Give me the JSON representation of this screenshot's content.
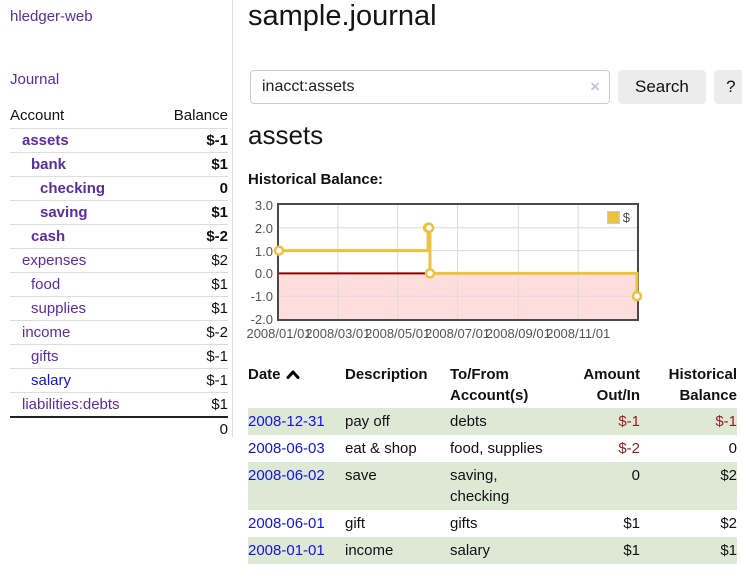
{
  "sidebar": {
    "brand": "hledger-web",
    "journal_link": "Journal",
    "headers": {
      "account": "Account",
      "balance": "Balance"
    },
    "accounts": [
      {
        "name": "assets",
        "level": 1,
        "bold": true,
        "balance": "$-1",
        "negative": true
      },
      {
        "name": "bank",
        "level": 2,
        "bold": true,
        "balance": "$1"
      },
      {
        "name": "checking",
        "level": 3,
        "bold": true,
        "balance": "0"
      },
      {
        "name": "saving",
        "level": 3,
        "bold": true,
        "balance": "$1"
      },
      {
        "name": "cash",
        "level": 2,
        "bold": true,
        "balance": "$-2",
        "negative": true
      },
      {
        "name": "expenses",
        "level": 1,
        "balance": "$2"
      },
      {
        "name": "food",
        "level": 2,
        "balance": "$1"
      },
      {
        "name": "supplies",
        "level": 2,
        "balance": "$1"
      },
      {
        "name": "income",
        "level": 1,
        "balance": "$-2",
        "faint": true
      },
      {
        "name": "gifts",
        "level": 2,
        "balance": "$-1",
        "faint": true
      },
      {
        "name": "salary",
        "level": 2,
        "balance": "$-1",
        "faint": true,
        "link_blue": true
      },
      {
        "name": "liabilities:debts",
        "level": 1,
        "balance": "$1"
      }
    ],
    "total": "0"
  },
  "main": {
    "title": "sample.journal",
    "search": {
      "value": "inacct:assets",
      "clear": "×",
      "button": "Search",
      "help": "?"
    },
    "account_heading": "assets",
    "chart_title": "Historical Balance:"
  },
  "chart_data": {
    "type": "line",
    "title": "Historical Balance",
    "xlim": [
      "2008-01-01",
      "2008-12-31"
    ],
    "ylim": [
      -2,
      3
    ],
    "x_ticks": [
      "2008/01/01",
      "2008/03/01",
      "2008/05/01",
      "2008/07/01",
      "2008/09/01",
      "2008/11/01"
    ],
    "y_ticks": [
      "3.0",
      "2.0",
      "1.0",
      "0.0",
      "-1.0",
      "-2.0"
    ],
    "series": [
      {
        "name": "$",
        "color": "#edc240",
        "steps": true,
        "points": [
          [
            "2008-01-01",
            1
          ],
          [
            "2008-06-01",
            2
          ],
          [
            "2008-06-02",
            2
          ],
          [
            "2008-06-03",
            0
          ],
          [
            "2008-12-31",
            -1
          ]
        ]
      }
    ],
    "legend": {
      "label": "$",
      "position": "top-right"
    },
    "grid": true,
    "colors": {
      "grid": "#dcdcdc",
      "zero_line": "#8b0000",
      "negative_region": "#ffdddd",
      "border": "#4a4a4a",
      "tick_label": "#545454"
    }
  },
  "register": {
    "headers": {
      "date": "Date",
      "description": "Description",
      "accounts": "To/From Account(s)",
      "amount": "Amount Out/In",
      "balance": "Historical Balance"
    },
    "rows": [
      {
        "date": "2008-12-31",
        "description": "pay off",
        "accounts": "debts",
        "amount": "$-1",
        "amount_negative": true,
        "balance": "$-1",
        "balance_negative": true
      },
      {
        "date": "2008-06-03",
        "description": "eat & shop",
        "accounts": "food, supplies",
        "amount": "$-2",
        "amount_negative": true,
        "balance": "0"
      },
      {
        "date": "2008-06-02",
        "description": "save",
        "accounts": "saving, checking",
        "amount": "0",
        "balance": "$2"
      },
      {
        "date": "2008-06-01",
        "description": "gift",
        "accounts": "gifts",
        "amount": "$1",
        "balance": "$2"
      },
      {
        "date": "2008-01-01",
        "description": "income",
        "accounts": "salary",
        "amount": "$1",
        "balance": "$1"
      }
    ]
  }
}
